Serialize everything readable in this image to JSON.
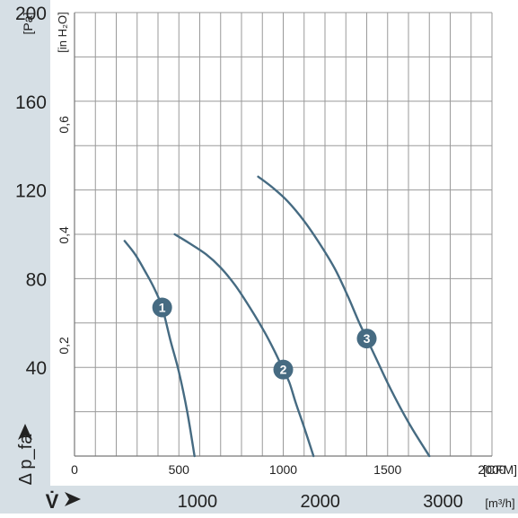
{
  "chart_data": {
    "type": "line",
    "x_axis_cfm": {
      "unit_label": "[CFM]",
      "ticks": [
        0,
        500,
        1000,
        1500,
        2000
      ],
      "range": [
        0,
        2000
      ]
    },
    "x_axis_m3h": {
      "unit_label": "[m³/h]",
      "symbol": "V̇",
      "ticks": [
        1000,
        2000,
        3000
      ]
    },
    "y_axis_pa": {
      "unit_label": "[Pa]",
      "ticks": [
        40,
        80,
        120,
        160,
        200
      ],
      "range": [
        0,
        200
      ],
      "label": "Δ p_fa"
    },
    "y_axis_inh2o": {
      "unit_label": "[in H₂O]",
      "ticks": [
        0.2,
        0.4,
        0.6
      ]
    },
    "grid": true,
    "series": [
      {
        "name": "1",
        "color": "#466b82",
        "points": [
          [
            240,
            97
          ],
          [
            290,
            91
          ],
          [
            340,
            83
          ],
          [
            380,
            76
          ],
          [
            420,
            67
          ],
          [
            460,
            52
          ],
          [
            500,
            38
          ],
          [
            540,
            20
          ],
          [
            575,
            0
          ]
        ]
      },
      {
        "name": "2",
        "color": "#466b82",
        "points": [
          [
            480,
            100
          ],
          [
            550,
            96
          ],
          [
            630,
            91
          ],
          [
            700,
            85
          ],
          [
            770,
            77
          ],
          [
            840,
            67
          ],
          [
            910,
            56
          ],
          [
            960,
            47
          ],
          [
            1000,
            39
          ],
          [
            1030,
            33
          ],
          [
            1060,
            24
          ],
          [
            1100,
            13
          ],
          [
            1145,
            0
          ]
        ]
      },
      {
        "name": "3",
        "color": "#466b82",
        "points": [
          [
            880,
            126
          ],
          [
            950,
            121
          ],
          [
            1020,
            115
          ],
          [
            1100,
            106
          ],
          [
            1180,
            95
          ],
          [
            1250,
            84
          ],
          [
            1310,
            72
          ],
          [
            1360,
            61
          ],
          [
            1400,
            53
          ],
          [
            1450,
            43
          ],
          [
            1500,
            33
          ],
          [
            1560,
            22
          ],
          [
            1620,
            12
          ],
          [
            1700,
            0
          ]
        ]
      }
    ],
    "colors": {
      "band": "#d6dfe5",
      "curve": "#466b82",
      "badge": "#466b82",
      "grid": "#9a9a9a"
    }
  }
}
